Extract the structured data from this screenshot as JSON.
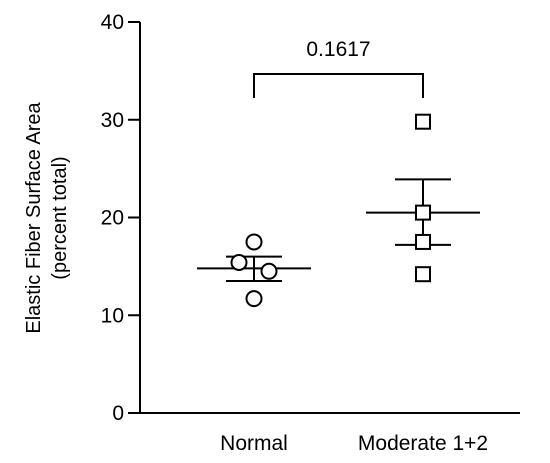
{
  "chart_data": {
    "type": "scatter",
    "title": "",
    "xlabel": "",
    "ylabel": [
      "Elastic Fiber Surface Area",
      "(percent total)"
    ],
    "ylim": [
      0,
      40
    ],
    "yticks": [
      0,
      10,
      20,
      30,
      40
    ],
    "categories": [
      "Normal",
      "Moderate 1+2"
    ],
    "series": [
      {
        "category": "Normal",
        "marker": "circle",
        "points": [
          17.5,
          15.4,
          14.5,
          11.7
        ],
        "mean": 14.8,
        "sem_upper": 16.0,
        "sem_lower": 13.5
      },
      {
        "category": "Moderate 1+2",
        "marker": "square",
        "points": [
          29.8,
          20.5,
          17.5,
          14.2
        ],
        "mean": 20.5,
        "sem_upper": 23.9,
        "sem_lower": 17.2
      }
    ],
    "annotations": [
      {
        "type": "bracket",
        "from": "Normal",
        "to": "Moderate 1+2",
        "y": 34.0,
        "label": "0.1617"
      }
    ],
    "grid": false,
    "legend": "none"
  }
}
